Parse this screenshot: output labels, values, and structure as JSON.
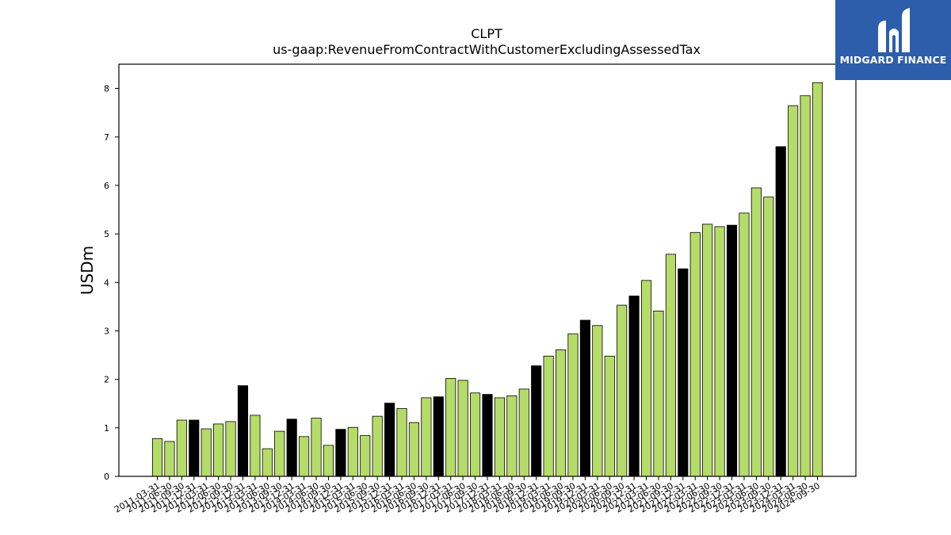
{
  "chart_data": {
    "type": "bar",
    "title": "CLPT",
    "subtitle": "us-gaap:RevenueFromContractWithCustomerExcludingAssessedTax",
    "ylabel": "USDm",
    "xlabel": "",
    "ylim": [
      0,
      8.5
    ],
    "yticks": [
      0,
      1,
      2,
      3,
      4,
      5,
      6,
      7,
      8
    ],
    "grid": false,
    "colors": {
      "quarter": "#b5dc68",
      "year_end": "#000000",
      "edge": "#000000"
    },
    "bars": [
      {
        "label": "2011-03-31",
        "value": 0.78,
        "annual": false
      },
      {
        "label": "2011-06-30",
        "value": 0.72,
        "annual": false
      },
      {
        "label": "2011-09-30",
        "value": 1.16,
        "annual": false
      },
      {
        "label": "2011-12-31",
        "value": 1.16,
        "annual": true
      },
      {
        "label": "2012-03-31",
        "value": 0.98,
        "annual": false
      },
      {
        "label": "2012-06-30",
        "value": 1.08,
        "annual": false
      },
      {
        "label": "2012-09-30",
        "value": 1.13,
        "annual": false
      },
      {
        "label": "2012-12-31",
        "value": 1.87,
        "annual": true
      },
      {
        "label": "2013-03-31",
        "value": 1.26,
        "annual": false
      },
      {
        "label": "2013-06-30",
        "value": 0.57,
        "annual": false
      },
      {
        "label": "2013-09-30",
        "value": 0.93,
        "annual": false
      },
      {
        "label": "2013-12-31",
        "value": 1.18,
        "annual": true
      },
      {
        "label": "2014-03-31",
        "value": 0.82,
        "annual": false
      },
      {
        "label": "2014-06-30",
        "value": 1.2,
        "annual": false
      },
      {
        "label": "2014-09-30",
        "value": 0.64,
        "annual": false
      },
      {
        "label": "2014-12-31",
        "value": 0.97,
        "annual": true
      },
      {
        "label": "2015-03-31",
        "value": 1.01,
        "annual": false
      },
      {
        "label": "2015-06-30",
        "value": 0.84,
        "annual": false
      },
      {
        "label": "2015-09-30",
        "value": 1.24,
        "annual": false
      },
      {
        "label": "2015-12-31",
        "value": 1.51,
        "annual": true
      },
      {
        "label": "2016-03-31",
        "value": 1.4,
        "annual": false
      },
      {
        "label": "2016-06-30",
        "value": 1.11,
        "annual": false
      },
      {
        "label": "2016-09-30",
        "value": 1.62,
        "annual": false
      },
      {
        "label": "2016-12-31",
        "value": 1.64,
        "annual": true
      },
      {
        "label": "2017-03-31",
        "value": 2.02,
        "annual": false
      },
      {
        "label": "2017-06-30",
        "value": 1.98,
        "annual": false
      },
      {
        "label": "2017-09-30",
        "value": 1.72,
        "annual": false
      },
      {
        "label": "2017-12-31",
        "value": 1.69,
        "annual": true
      },
      {
        "label": "2018-03-31",
        "value": 1.62,
        "annual": false
      },
      {
        "label": "2018-06-30",
        "value": 1.66,
        "annual": false
      },
      {
        "label": "2018-09-30",
        "value": 1.8,
        "annual": false
      },
      {
        "label": "2018-12-31",
        "value": 2.28,
        "annual": true
      },
      {
        "label": "2019-03-31",
        "value": 2.48,
        "annual": false
      },
      {
        "label": "2019-06-30",
        "value": 2.61,
        "annual": false
      },
      {
        "label": "2019-09-30",
        "value": 2.94,
        "annual": false
      },
      {
        "label": "2019-12-31",
        "value": 3.22,
        "annual": true
      },
      {
        "label": "2020-03-31",
        "value": 3.11,
        "annual": false
      },
      {
        "label": "2020-06-30",
        "value": 2.48,
        "annual": false
      },
      {
        "label": "2020-09-30",
        "value": 3.53,
        "annual": false
      },
      {
        "label": "2020-12-31",
        "value": 3.72,
        "annual": true
      },
      {
        "label": "2021-03-31",
        "value": 4.04,
        "annual": false
      },
      {
        "label": "2021-06-30",
        "value": 3.41,
        "annual": false
      },
      {
        "label": "2021-09-30",
        "value": 4.58,
        "annual": false
      },
      {
        "label": "2021-12-31",
        "value": 4.28,
        "annual": true
      },
      {
        "label": "2022-03-31",
        "value": 5.03,
        "annual": false
      },
      {
        "label": "2022-06-30",
        "value": 5.2,
        "annual": false
      },
      {
        "label": "2022-09-30",
        "value": 5.15,
        "annual": false
      },
      {
        "label": "2022-12-31",
        "value": 5.18,
        "annual": true
      },
      {
        "label": "2023-03-31",
        "value": 5.43,
        "annual": false
      },
      {
        "label": "2023-06-30",
        "value": 5.95,
        "annual": false
      },
      {
        "label": "2023-09-30",
        "value": 5.76,
        "annual": false
      },
      {
        "label": "2023-12-31",
        "value": 6.8,
        "annual": true
      },
      {
        "label": "2024-03-31",
        "value": 7.64,
        "annual": false
      },
      {
        "label": "2024-06-30",
        "value": 7.85,
        "annual": false
      },
      {
        "label": "2024-09-30",
        "value": 8.12,
        "annual": false
      }
    ]
  },
  "logo": {
    "text": "MIDGARD FINANCE",
    "icon": "midgard-logo-icon",
    "background": "#2d5eac"
  }
}
